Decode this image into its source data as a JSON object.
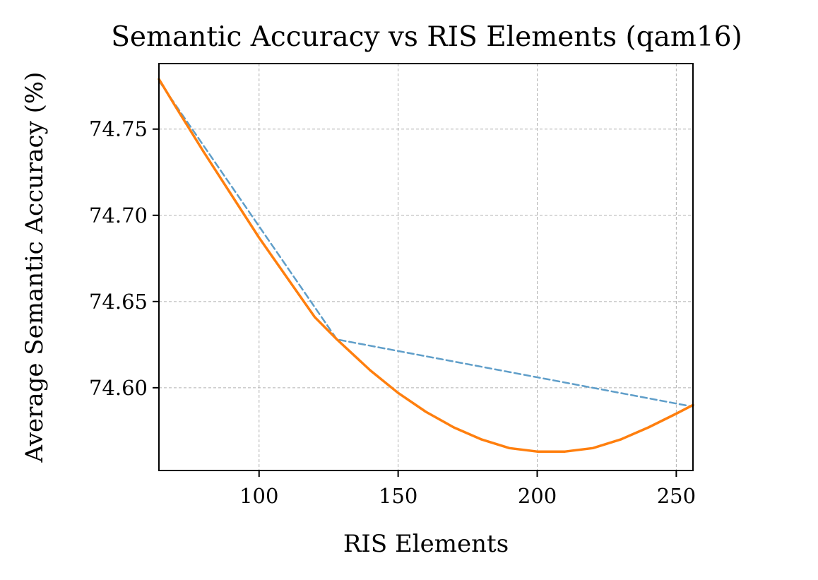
{
  "chart_data": {
    "type": "line",
    "title": "Semantic Accuracy vs RIS Elements (qam16)",
    "xlabel": "RIS Elements",
    "ylabel": "Average Semantic Accuracy (%)",
    "xlim": [
      64,
      256
    ],
    "ylim": [
      74.552,
      74.788
    ],
    "xticks": [
      100,
      150,
      200,
      250
    ],
    "xtick_labels": [
      "100",
      "150",
      "200",
      "250"
    ],
    "yticks": [
      74.6,
      74.65,
      74.7,
      74.75
    ],
    "ytick_labels": [
      "74.60",
      "74.65",
      "74.70",
      "74.75"
    ],
    "grid": true,
    "legend": "none",
    "series": [
      {
        "style": "dashed",
        "color": "#5f9ec9",
        "x": [
          64,
          128,
          256
        ],
        "y": [
          74.778,
          74.628,
          74.589
        ]
      },
      {
        "style": "solid",
        "color": "#ff7f0e",
        "x": [
          64,
          70,
          80,
          90,
          100,
          110,
          120,
          128,
          140,
          150,
          160,
          170,
          180,
          190,
          200,
          206,
          210,
          220,
          230,
          240,
          250,
          256
        ],
        "y": [
          74.779,
          74.763,
          74.737,
          74.712,
          74.687,
          74.664,
          74.641,
          74.628,
          74.61,
          74.597,
          74.586,
          74.577,
          74.57,
          74.565,
          74.563,
          74.563,
          74.563,
          74.565,
          74.57,
          74.577,
          74.585,
          74.59
        ]
      }
    ]
  }
}
